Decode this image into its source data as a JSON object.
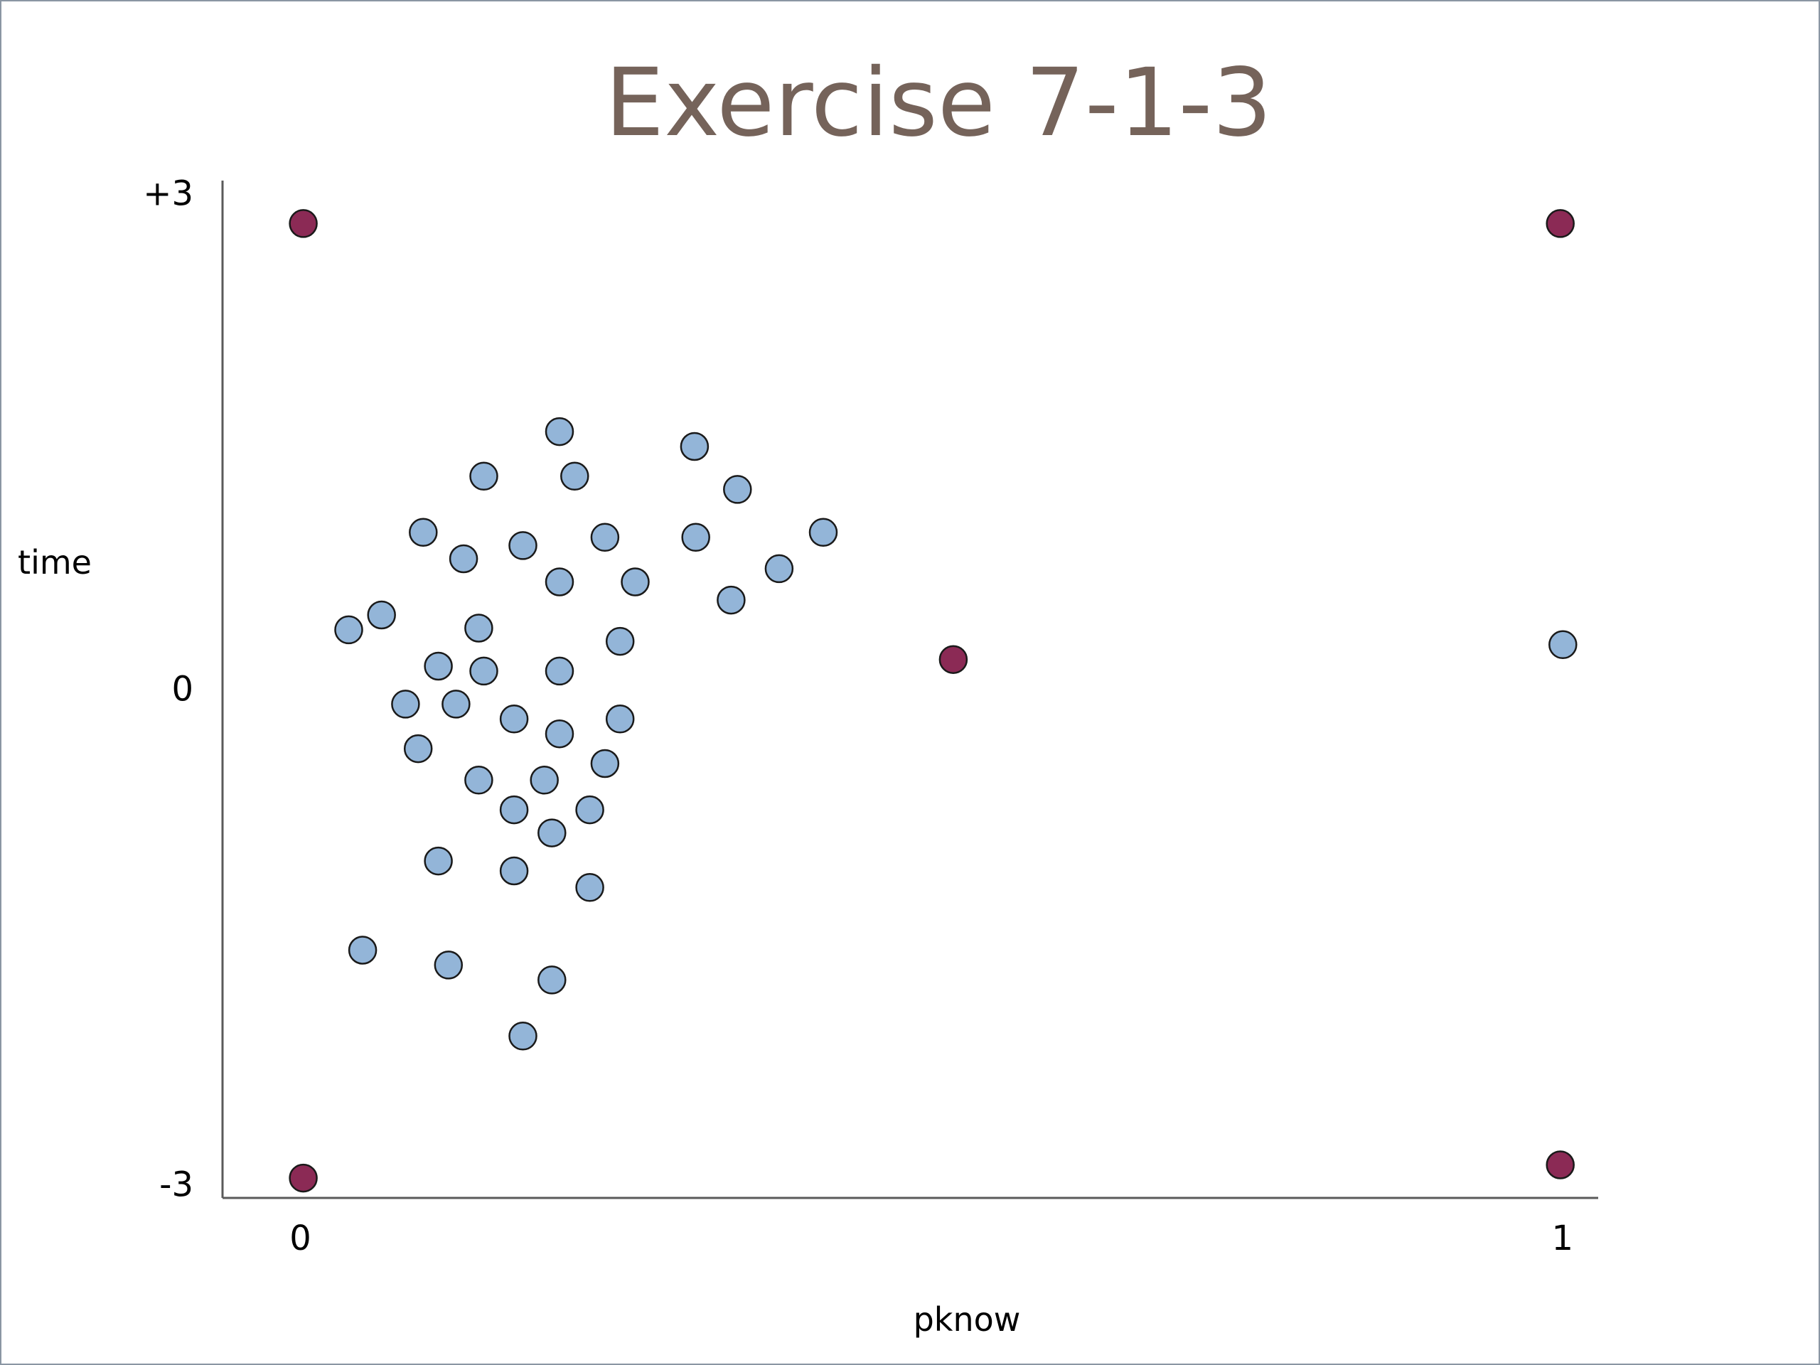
{
  "chart_data": {
    "type": "scatter",
    "title": "Exercise 7-1-3",
    "xlabel": "pknow",
    "ylabel": "time",
    "x_ticks": [
      {
        "value": 0,
        "label": "0"
      },
      {
        "value": 1,
        "label": "1"
      }
    ],
    "y_ticks": [
      {
        "value": 3,
        "label": "+3"
      },
      {
        "value": 0,
        "label": "0"
      },
      {
        "value": -3,
        "label": "-3"
      }
    ],
    "xlim": [
      -0.06,
      1.03
    ],
    "ylim": [
      -3.08,
      3.08
    ],
    "grid": false,
    "legend": "none",
    "colors": {
      "blue": "#93b5d8",
      "maroon": "#8b2a55",
      "title": "#75635a"
    },
    "series": [
      {
        "color": "#93b5d8",
        "points": [
          [
            0.207,
            1.56
          ],
          [
            0.314,
            1.47
          ],
          [
            0.147,
            1.29
          ],
          [
            0.219,
            1.29
          ],
          [
            0.348,
            1.21
          ],
          [
            0.099,
            0.95
          ],
          [
            0.178,
            0.87
          ],
          [
            0.243,
            0.92
          ],
          [
            0.315,
            0.92
          ],
          [
            0.416,
            0.95
          ],
          [
            0.381,
            0.73
          ],
          [
            0.131,
            0.79
          ],
          [
            0.207,
            0.65
          ],
          [
            0.267,
            0.65
          ],
          [
            0.343,
            0.54
          ],
          [
            0.066,
            0.45
          ],
          [
            0.143,
            0.37
          ],
          [
            0.255,
            0.29
          ],
          [
            0.04,
            0.36
          ],
          [
            0.111,
            0.14
          ],
          [
            0.147,
            0.11
          ],
          [
            0.207,
            0.11
          ],
          [
            0.085,
            -0.09
          ],
          [
            0.125,
            -0.09
          ],
          [
            0.171,
            -0.18
          ],
          [
            0.255,
            -0.18
          ],
          [
            0.207,
            -0.27
          ],
          [
            0.095,
            -0.36
          ],
          [
            0.243,
            -0.45
          ],
          [
            0.143,
            -0.55
          ],
          [
            0.195,
            -0.55
          ],
          [
            0.171,
            -0.73
          ],
          [
            0.231,
            -0.73
          ],
          [
            0.201,
            -0.87
          ],
          [
            0.111,
            -1.04
          ],
          [
            0.171,
            -1.1
          ],
          [
            0.231,
            -1.2
          ],
          [
            0.051,
            -1.58
          ],
          [
            0.119,
            -1.67
          ],
          [
            0.201,
            -1.76
          ],
          [
            0.178,
            -2.1
          ],
          [
            1.002,
            0.27
          ]
        ]
      },
      {
        "color": "#8b2a55",
        "points": [
          [
            0.004,
            2.82
          ],
          [
            1.0,
            2.82
          ],
          [
            0.519,
            0.18
          ],
          [
            0.004,
            -2.96
          ],
          [
            1.0,
            -2.88
          ]
        ]
      }
    ]
  }
}
